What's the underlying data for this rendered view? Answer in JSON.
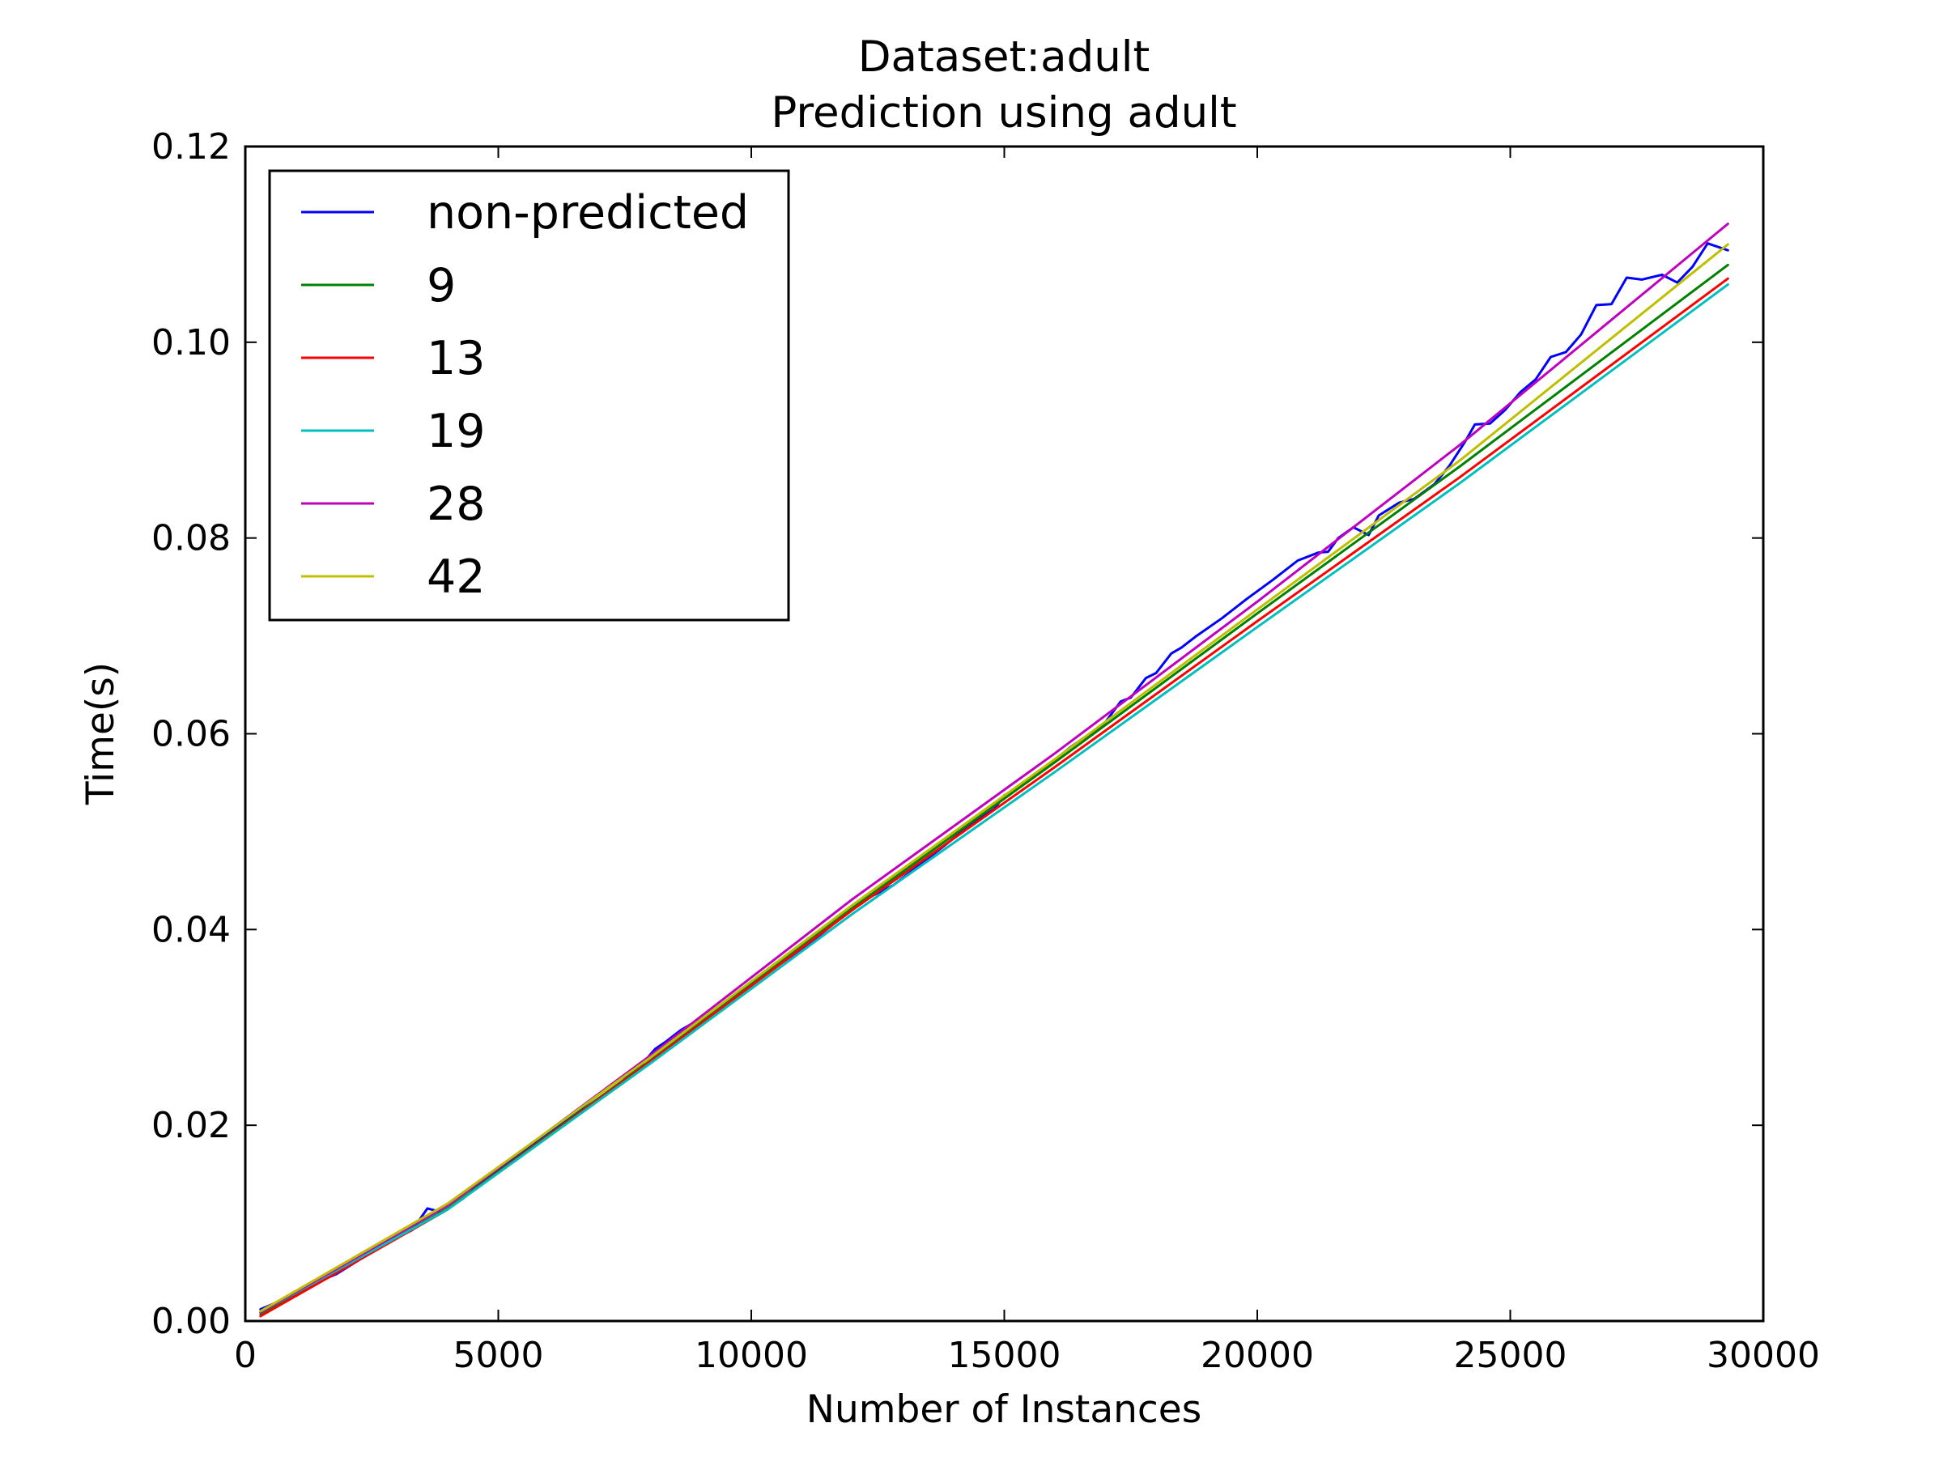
{
  "chart_data": {
    "type": "line",
    "title": "Dataset:adult",
    "subtitle": "Prediction using adult",
    "xlabel": "Number of Instances",
    "ylabel": "Time(s)",
    "xlim": [
      0,
      30000
    ],
    "ylim": [
      0,
      0.12
    ],
    "xticks": [
      0,
      5000,
      10000,
      15000,
      20000,
      25000,
      30000
    ],
    "xtick_labels": [
      "0",
      "5000",
      "10000",
      "15000",
      "20000",
      "25000",
      "30000"
    ],
    "yticks": [
      0,
      0.02,
      0.04,
      0.06,
      0.08,
      0.1,
      0.12
    ],
    "ytick_labels": [
      "0.00",
      "0.02",
      "0.04",
      "0.06",
      "0.08",
      "0.10",
      "0.12"
    ],
    "grid": false,
    "legend_position": "top-left",
    "series": [
      {
        "name": "non-predicted",
        "color": "#0000ff",
        "x": [
          300,
          800,
          1300,
          1800,
          2300,
          2800,
          3300,
          3600,
          3900,
          4300,
          4800,
          5300,
          5800,
          6300,
          6800,
          7300,
          7500,
          7800,
          8100,
          8300,
          8600,
          8800,
          9100,
          9300,
          9500,
          9700,
          10000,
          10300,
          10800,
          11300,
          11800,
          12300,
          12800,
          13300,
          13800,
          14300,
          14800,
          15000,
          15300,
          15800,
          16300,
          16800,
          17000,
          17300,
          17500,
          17800,
          18000,
          18300,
          18500,
          18800,
          19300,
          19800,
          20300,
          20800,
          21200,
          21400,
          21600,
          21900,
          22200,
          22400,
          22800,
          23100,
          23500,
          23800,
          24100,
          24300,
          24600,
          24900,
          25200,
          25500,
          25800,
          26100,
          26400,
          26700,
          27000,
          27300,
          27600,
          28000,
          28300,
          28600,
          28900,
          29300
        ],
        "y": [
          0.0012,
          0.0023,
          0.0037,
          0.0048,
          0.0064,
          0.008,
          0.0093,
          0.0115,
          0.0111,
          0.0125,
          0.0148,
          0.0165,
          0.0186,
          0.0203,
          0.0224,
          0.0244,
          0.025,
          0.026,
          0.0278,
          0.0285,
          0.0297,
          0.0303,
          0.031,
          0.0315,
          0.0322,
          0.0334,
          0.0345,
          0.0355,
          0.0373,
          0.0392,
          0.0413,
          0.0432,
          0.0445,
          0.0465,
          0.0485,
          0.0506,
          0.0523,
          0.0537,
          0.0546,
          0.0565,
          0.0586,
          0.0604,
          0.0612,
          0.0633,
          0.0637,
          0.0657,
          0.0662,
          0.0682,
          0.0688,
          0.07,
          0.0718,
          0.0738,
          0.0757,
          0.0777,
          0.0785,
          0.0786,
          0.08,
          0.0811,
          0.0803,
          0.0823,
          0.0836,
          0.084,
          0.0855,
          0.0874,
          0.0898,
          0.0916,
          0.0917,
          0.0931,
          0.0949,
          0.0962,
          0.0985,
          0.099,
          0.1008,
          0.1038,
          0.1039,
          0.1066,
          0.1064,
          0.1069,
          0.1061,
          0.1077,
          0.1101,
          0.1094
        ]
      },
      {
        "name": "9",
        "color": "#008000",
        "x": [
          300,
          4000,
          8000,
          12000,
          16000,
          20000,
          24000,
          29300
        ],
        "y": [
          0.0007,
          0.0115,
          0.0266,
          0.0422,
          0.0571,
          0.0723,
          0.0873,
          0.1079
        ]
      },
      {
        "name": "13",
        "color": "#ff0000",
        "x": [
          300,
          4000,
          8000,
          12000,
          16000,
          20000,
          24000,
          29300
        ],
        "y": [
          0.0005,
          0.0114,
          0.0265,
          0.042,
          0.0566,
          0.0715,
          0.0862,
          0.1065
        ]
      },
      {
        "name": "19",
        "color": "#00bfbf",
        "x": [
          300,
          4000,
          8000,
          12000,
          16000,
          20000,
          24000,
          29300
        ],
        "y": [
          0.0009,
          0.0114,
          0.0263,
          0.0416,
          0.0561,
          0.0709,
          0.0856,
          0.1059
        ]
      },
      {
        "name": "28",
        "color": "#bf00bf",
        "x": [
          300,
          4000,
          8000,
          12000,
          16000,
          20000,
          24000,
          29300
        ],
        "y": [
          0.0009,
          0.0118,
          0.0271,
          0.0431,
          0.058,
          0.0735,
          0.0895,
          0.1121
        ]
      },
      {
        "name": "42",
        "color": "#bfbf00",
        "x": [
          300,
          4000,
          8000,
          12000,
          16000,
          20000,
          24000,
          29300
        ],
        "y": [
          0.001,
          0.012,
          0.0269,
          0.0425,
          0.0574,
          0.0727,
          0.0879,
          0.11
        ]
      }
    ]
  }
}
